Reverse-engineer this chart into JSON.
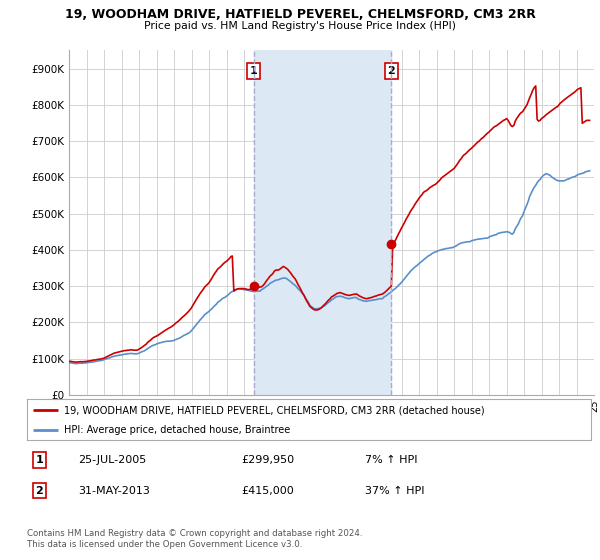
{
  "title": "19, WOODHAM DRIVE, HATFIELD PEVEREL, CHELMSFORD, CM3 2RR",
  "subtitle": "Price paid vs. HM Land Registry's House Price Index (HPI)",
  "ylim": [
    0,
    950000
  ],
  "yticks": [
    0,
    100000,
    200000,
    300000,
    400000,
    500000,
    600000,
    700000,
    800000,
    900000
  ],
  "ytick_labels": [
    "£0",
    "£100K",
    "£200K",
    "£300K",
    "£400K",
    "£500K",
    "£600K",
    "£700K",
    "£800K",
    "£900K"
  ],
  "sale1_year": 2005.56,
  "sale1_price": 299950,
  "sale1_label": "1",
  "sale2_year": 2013.42,
  "sale2_price": 415000,
  "sale2_label": "2",
  "red_line_color": "#cc0000",
  "blue_line_color": "#5b8fc9",
  "vline_color": "#aaaacc",
  "shade_color": "#dde8f5",
  "marker_color": "#cc0000",
  "background_color": "#ffffff",
  "grid_color": "#cccccc",
  "legend1_text": "19, WOODHAM DRIVE, HATFIELD PEVEREL, CHELMSFORD, CM3 2RR (detached house)",
  "legend2_text": "HPI: Average price, detached house, Braintree",
  "note1_label": "1",
  "note1_date": "25-JUL-2005",
  "note1_price": "£299,950",
  "note1_hpi": "7% ↑ HPI",
  "note2_label": "2",
  "note2_date": "31-MAY-2013",
  "note2_price": "£415,000",
  "note2_hpi": "37% ↑ HPI",
  "footer": "Contains HM Land Registry data © Crown copyright and database right 2024.\nThis data is licensed under the Open Government Licence v3.0.",
  "hpi_data_years": [
    1995.0,
    1995.08,
    1995.17,
    1995.25,
    1995.33,
    1995.42,
    1995.5,
    1995.58,
    1995.67,
    1995.75,
    1995.83,
    1995.92,
    1996.0,
    1996.08,
    1996.17,
    1996.25,
    1996.33,
    1996.42,
    1996.5,
    1996.58,
    1996.67,
    1996.75,
    1996.83,
    1996.92,
    1997.0,
    1997.08,
    1997.17,
    1997.25,
    1997.33,
    1997.42,
    1997.5,
    1997.58,
    1997.67,
    1997.75,
    1997.83,
    1997.92,
    1998.0,
    1998.08,
    1998.17,
    1998.25,
    1998.33,
    1998.42,
    1998.5,
    1998.58,
    1998.67,
    1998.75,
    1998.83,
    1998.92,
    1999.0,
    1999.08,
    1999.17,
    1999.25,
    1999.33,
    1999.42,
    1999.5,
    1999.58,
    1999.67,
    1999.75,
    1999.83,
    1999.92,
    2000.0,
    2000.08,
    2000.17,
    2000.25,
    2000.33,
    2000.42,
    2000.5,
    2000.58,
    2000.67,
    2000.75,
    2000.83,
    2000.92,
    2001.0,
    2001.08,
    2001.17,
    2001.25,
    2001.33,
    2001.42,
    2001.5,
    2001.58,
    2001.67,
    2001.75,
    2001.83,
    2001.92,
    2002.0,
    2002.08,
    2002.17,
    2002.25,
    2002.33,
    2002.42,
    2002.5,
    2002.58,
    2002.67,
    2002.75,
    2002.83,
    2002.92,
    2003.0,
    2003.08,
    2003.17,
    2003.25,
    2003.33,
    2003.42,
    2003.5,
    2003.58,
    2003.67,
    2003.75,
    2003.83,
    2003.92,
    2004.0,
    2004.08,
    2004.17,
    2004.25,
    2004.33,
    2004.42,
    2004.5,
    2004.58,
    2004.67,
    2004.75,
    2004.83,
    2004.92,
    2005.0,
    2005.08,
    2005.17,
    2005.25,
    2005.33,
    2005.42,
    2005.5,
    2005.58,
    2005.67,
    2005.75,
    2005.83,
    2005.92,
    2006.0,
    2006.08,
    2006.17,
    2006.25,
    2006.33,
    2006.42,
    2006.5,
    2006.58,
    2006.67,
    2006.75,
    2006.83,
    2006.92,
    2007.0,
    2007.08,
    2007.17,
    2007.25,
    2007.33,
    2007.42,
    2007.5,
    2007.58,
    2007.67,
    2007.75,
    2007.83,
    2007.92,
    2008.0,
    2008.08,
    2008.17,
    2008.25,
    2008.33,
    2008.42,
    2008.5,
    2008.58,
    2008.67,
    2008.75,
    2008.83,
    2008.92,
    2009.0,
    2009.08,
    2009.17,
    2009.25,
    2009.33,
    2009.42,
    2009.5,
    2009.58,
    2009.67,
    2009.75,
    2009.83,
    2009.92,
    2010.0,
    2010.08,
    2010.17,
    2010.25,
    2010.33,
    2010.42,
    2010.5,
    2010.58,
    2010.67,
    2010.75,
    2010.83,
    2010.92,
    2011.0,
    2011.08,
    2011.17,
    2011.25,
    2011.33,
    2011.42,
    2011.5,
    2011.58,
    2011.67,
    2011.75,
    2011.83,
    2011.92,
    2012.0,
    2012.08,
    2012.17,
    2012.25,
    2012.33,
    2012.42,
    2012.5,
    2012.58,
    2012.67,
    2012.75,
    2012.83,
    2012.92,
    2013.0,
    2013.08,
    2013.17,
    2013.25,
    2013.33,
    2013.42,
    2013.5,
    2013.58,
    2013.67,
    2013.75,
    2013.83,
    2013.92,
    2014.0,
    2014.08,
    2014.17,
    2014.25,
    2014.33,
    2014.42,
    2014.5,
    2014.58,
    2014.67,
    2014.75,
    2014.83,
    2014.92,
    2015.0,
    2015.08,
    2015.17,
    2015.25,
    2015.33,
    2015.42,
    2015.5,
    2015.58,
    2015.67,
    2015.75,
    2015.83,
    2015.92,
    2016.0,
    2016.08,
    2016.17,
    2016.25,
    2016.33,
    2016.42,
    2016.5,
    2016.58,
    2016.67,
    2016.75,
    2016.83,
    2016.92,
    2017.0,
    2017.08,
    2017.17,
    2017.25,
    2017.33,
    2017.42,
    2017.5,
    2017.58,
    2017.67,
    2017.75,
    2017.83,
    2017.92,
    2018.0,
    2018.08,
    2018.17,
    2018.25,
    2018.33,
    2018.42,
    2018.5,
    2018.58,
    2018.67,
    2018.75,
    2018.83,
    2018.92,
    2019.0,
    2019.08,
    2019.17,
    2019.25,
    2019.33,
    2019.42,
    2019.5,
    2019.58,
    2019.67,
    2019.75,
    2019.83,
    2019.92,
    2020.0,
    2020.08,
    2020.17,
    2020.25,
    2020.33,
    2020.42,
    2020.5,
    2020.58,
    2020.67,
    2020.75,
    2020.83,
    2020.92,
    2021.0,
    2021.08,
    2021.17,
    2021.25,
    2021.33,
    2021.42,
    2021.5,
    2021.58,
    2021.67,
    2021.75,
    2021.83,
    2021.92,
    2022.0,
    2022.08,
    2022.17,
    2022.25,
    2022.33,
    2022.42,
    2022.5,
    2022.58,
    2022.67,
    2022.75,
    2022.83,
    2022.92,
    2023.0,
    2023.08,
    2023.17,
    2023.25,
    2023.33,
    2023.42,
    2023.5,
    2023.58,
    2023.67,
    2023.75,
    2023.83,
    2023.92,
    2024.0,
    2024.08,
    2024.17,
    2024.25,
    2024.33,
    2024.42,
    2024.5,
    2024.58,
    2024.67,
    2024.75
  ],
  "hpi_data_values": [
    88000,
    88500,
    87500,
    87000,
    86500,
    86000,
    86500,
    87000,
    87500,
    87000,
    87500,
    88000,
    88000,
    89000,
    89500,
    90000,
    90500,
    91000,
    92000,
    92500,
    93500,
    94000,
    94500,
    95500,
    97000,
    98500,
    100000,
    101000,
    102000,
    104000,
    105000,
    106500,
    107500,
    108000,
    109000,
    109500,
    110000,
    111000,
    112000,
    112000,
    113000,
    113500,
    114000,
    114000,
    113500,
    113000,
    113000,
    113500,
    115000,
    117000,
    119000,
    120000,
    122000,
    125000,
    128000,
    130000,
    133000,
    135000,
    137000,
    138000,
    140000,
    141500,
    143000,
    144000,
    145000,
    146000,
    147000,
    147500,
    148000,
    148000,
    148500,
    149000,
    150000,
    152000,
    153500,
    155000,
    157000,
    159000,
    162000,
    164000,
    166000,
    168000,
    170000,
    173000,
    177000,
    182000,
    187000,
    192000,
    197000,
    202000,
    207000,
    211000,
    216000,
    221000,
    224000,
    227000,
    230000,
    234000,
    238000,
    242000,
    246000,
    250000,
    255000,
    258000,
    261000,
    265000,
    267000,
    269000,
    272000,
    275000,
    279000,
    283000,
    285000,
    287000,
    290000,
    291000,
    291500,
    292000,
    291500,
    291000,
    290000,
    289500,
    289000,
    288000,
    287000,
    286000,
    285000,
    285000,
    285500,
    286000,
    286000,
    286000,
    290000,
    292000,
    295000,
    298000,
    301000,
    304000,
    308000,
    310000,
    312000,
    315000,
    316000,
    317000,
    318000,
    320000,
    321000,
    322000,
    322000,
    321000,
    318000,
    315000,
    312000,
    308000,
    305000,
    302000,
    298000,
    293000,
    289000,
    285000,
    280000,
    275000,
    268000,
    262000,
    256000,
    248000,
    244000,
    241000,
    238000,
    237000,
    237500,
    238000,
    239000,
    240000,
    243000,
    245000,
    248000,
    252000,
    255000,
    258000,
    262000,
    264000,
    267000,
    270000,
    271000,
    271500,
    272000,
    271000,
    270000,
    268000,
    267000,
    266000,
    265000,
    266000,
    267000,
    268000,
    268500,
    268500,
    265000,
    263000,
    262000,
    260000,
    259000,
    258500,
    258000,
    259000,
    260000,
    260000,
    261000,
    262000,
    262000,
    263000,
    264000,
    265000,
    265000,
    265500,
    270000,
    272000,
    275000,
    278000,
    281000,
    284000,
    288000,
    291000,
    294000,
    298000,
    302000,
    306000,
    310000,
    315000,
    320000,
    325000,
    330000,
    335000,
    340000,
    344000,
    348000,
    352000,
    355000,
    358000,
    362000,
    365000,
    368500,
    372000,
    375000,
    378500,
    382000,
    384000,
    386500,
    390000,
    392000,
    394000,
    395000,
    397000,
    398500,
    400000,
    401000,
    401500,
    403000,
    403500,
    404000,
    405000,
    405500,
    406000,
    408000,
    410000,
    412000,
    415000,
    417000,
    418500,
    420000,
    420500,
    421000,
    422000,
    422000,
    422500,
    425000,
    426000,
    427000,
    428000,
    429000,
    429500,
    430000,
    430500,
    431000,
    432000,
    432000,
    432000,
    435000,
    437000,
    438500,
    440000,
    441000,
    441500,
    445000,
    446000,
    447000,
    448000,
    448500,
    449000,
    450000,
    449000,
    448000,
    445000,
    443000,
    448000,
    458000,
    464000,
    471000,
    480000,
    488000,
    494000,
    505000,
    515000,
    525000,
    535000,
    548000,
    557000,
    565000,
    572000,
    578000,
    585000,
    590000,
    594000,
    600000,
    604000,
    607000,
    610000,
    609000,
    607000,
    605000,
    601000,
    598000,
    595000,
    593000,
    591000,
    590000,
    590000,
    590000,
    590000,
    591000,
    593000,
    595000,
    596000,
    598000,
    600000,
    601000,
    602000,
    605000,
    607000,
    609000,
    610000,
    611000,
    612000,
    615000,
    616000,
    617000,
    618000
  ],
  "red_data_years": [
    1995.0,
    1995.08,
    1995.17,
    1995.25,
    1995.33,
    1995.42,
    1995.5,
    1995.58,
    1995.67,
    1995.75,
    1995.83,
    1995.92,
    1996.0,
    1996.08,
    1996.17,
    1996.25,
    1996.33,
    1996.42,
    1996.5,
    1996.58,
    1996.67,
    1996.75,
    1996.83,
    1996.92,
    1997.0,
    1997.08,
    1997.17,
    1997.25,
    1997.33,
    1997.42,
    1997.5,
    1997.58,
    1997.67,
    1997.75,
    1997.83,
    1997.92,
    1998.0,
    1998.08,
    1998.17,
    1998.25,
    1998.33,
    1998.42,
    1998.5,
    1998.58,
    1998.67,
    1998.75,
    1998.83,
    1998.92,
    1999.0,
    1999.08,
    1999.17,
    1999.25,
    1999.33,
    1999.42,
    1999.5,
    1999.58,
    1999.67,
    1999.75,
    1999.83,
    1999.92,
    2000.0,
    2000.08,
    2000.17,
    2000.25,
    2000.33,
    2000.42,
    2000.5,
    2000.58,
    2000.67,
    2000.75,
    2000.83,
    2000.92,
    2001.0,
    2001.08,
    2001.17,
    2001.25,
    2001.33,
    2001.42,
    2001.5,
    2001.58,
    2001.67,
    2001.75,
    2001.83,
    2001.92,
    2002.0,
    2002.08,
    2002.17,
    2002.25,
    2002.33,
    2002.42,
    2002.5,
    2002.58,
    2002.67,
    2002.75,
    2002.83,
    2002.92,
    2003.0,
    2003.08,
    2003.17,
    2003.25,
    2003.33,
    2003.42,
    2003.5,
    2003.58,
    2003.67,
    2003.75,
    2003.83,
    2003.92,
    2004.0,
    2004.08,
    2004.17,
    2004.25,
    2004.33,
    2004.42,
    2004.5,
    2004.58,
    2004.67,
    2004.75,
    2004.83,
    2004.92,
    2005.0,
    2005.08,
    2005.17,
    2005.25,
    2005.33,
    2005.42,
    2005.5,
    2005.58,
    2005.67,
    2005.75,
    2005.83,
    2005.92,
    2006.0,
    2006.08,
    2006.17,
    2006.25,
    2006.33,
    2006.42,
    2006.5,
    2006.58,
    2006.67,
    2006.75,
    2006.83,
    2006.92,
    2007.0,
    2007.08,
    2007.17,
    2007.25,
    2007.33,
    2007.42,
    2007.5,
    2007.58,
    2007.67,
    2007.75,
    2007.83,
    2007.92,
    2008.0,
    2008.08,
    2008.17,
    2008.25,
    2008.33,
    2008.42,
    2008.5,
    2008.58,
    2008.67,
    2008.75,
    2008.83,
    2008.92,
    2009.0,
    2009.08,
    2009.17,
    2009.25,
    2009.33,
    2009.42,
    2009.5,
    2009.58,
    2009.67,
    2009.75,
    2009.83,
    2009.92,
    2010.0,
    2010.08,
    2010.17,
    2010.25,
    2010.33,
    2010.42,
    2010.5,
    2010.58,
    2010.67,
    2010.75,
    2010.83,
    2010.92,
    2011.0,
    2011.08,
    2011.17,
    2011.25,
    2011.33,
    2011.42,
    2011.5,
    2011.58,
    2011.67,
    2011.75,
    2011.83,
    2011.92,
    2012.0,
    2012.08,
    2012.17,
    2012.25,
    2012.33,
    2012.42,
    2012.5,
    2012.58,
    2012.67,
    2012.75,
    2012.83,
    2012.92,
    2013.0,
    2013.08,
    2013.17,
    2013.25,
    2013.33,
    2013.42,
    2013.5,
    2013.58,
    2013.67,
    2013.75,
    2013.83,
    2013.92,
    2014.0,
    2014.08,
    2014.17,
    2014.25,
    2014.33,
    2014.42,
    2014.5,
    2014.58,
    2014.67,
    2014.75,
    2014.83,
    2014.92,
    2015.0,
    2015.08,
    2015.17,
    2015.25,
    2015.33,
    2015.42,
    2015.5,
    2015.58,
    2015.67,
    2015.75,
    2015.83,
    2015.92,
    2016.0,
    2016.08,
    2016.17,
    2016.25,
    2016.33,
    2016.42,
    2016.5,
    2016.58,
    2016.67,
    2016.75,
    2016.83,
    2016.92,
    2017.0,
    2017.08,
    2017.17,
    2017.25,
    2017.33,
    2017.42,
    2017.5,
    2017.58,
    2017.67,
    2017.75,
    2017.83,
    2017.92,
    2018.0,
    2018.08,
    2018.17,
    2018.25,
    2018.33,
    2018.42,
    2018.5,
    2018.58,
    2018.67,
    2018.75,
    2018.83,
    2018.92,
    2019.0,
    2019.08,
    2019.17,
    2019.25,
    2019.33,
    2019.42,
    2019.5,
    2019.58,
    2019.67,
    2019.75,
    2019.83,
    2019.92,
    2020.0,
    2020.08,
    2020.17,
    2020.25,
    2020.33,
    2020.42,
    2020.5,
    2020.58,
    2020.67,
    2020.75,
    2020.83,
    2020.92,
    2021.0,
    2021.08,
    2021.17,
    2021.25,
    2021.33,
    2021.42,
    2021.5,
    2021.58,
    2021.67,
    2021.75,
    2021.83,
    2021.92,
    2022.0,
    2022.08,
    2022.17,
    2022.25,
    2022.33,
    2022.42,
    2022.5,
    2022.58,
    2022.67,
    2022.75,
    2022.83,
    2022.92,
    2023.0,
    2023.08,
    2023.17,
    2023.25,
    2023.33,
    2023.42,
    2023.5,
    2023.58,
    2023.67,
    2023.75,
    2023.83,
    2023.92,
    2024.0,
    2024.08,
    2024.17,
    2024.25,
    2024.33,
    2024.42,
    2024.5,
    2024.58,
    2024.67,
    2024.75
  ],
  "red_data_values": [
    92000,
    92500,
    91500,
    91000,
    90500,
    90000,
    90500,
    91000,
    91500,
    91000,
    91500,
    92000,
    92000,
    93000,
    93500,
    94000,
    95000,
    96000,
    96000,
    97000,
    98000,
    98000,
    99000,
    100000,
    101000,
    103000,
    105000,
    107000,
    109000,
    111000,
    113000,
    115000,
    116000,
    117000,
    118000,
    119000,
    120000,
    121000,
    122000,
    122000,
    123000,
    123000,
    124000,
    124000,
    123500,
    123000,
    123000,
    123500,
    126000,
    128000,
    131000,
    134000,
    137000,
    140000,
    145000,
    148000,
    151000,
    155000,
    158000,
    160000,
    162000,
    164000,
    167000,
    170000,
    172000,
    175000,
    178000,
    180000,
    183000,
    185000,
    187000,
    190000,
    193000,
    197000,
    200000,
    203000,
    207000,
    211000,
    215000,
    218000,
    222000,
    226000,
    230000,
    235000,
    240000,
    247000,
    254000,
    261000,
    267000,
    274000,
    280000,
    285000,
    291000,
    297000,
    301000,
    305000,
    309000,
    315000,
    322000,
    329000,
    335000,
    341000,
    347000,
    350000,
    354000,
    358000,
    362000,
    366000,
    368000,
    372000,
    376000,
    381000,
    383000,
    286000,
    289000,
    291000,
    292500,
    293000,
    293000,
    293000,
    293000,
    292000,
    291000,
    290000,
    291000,
    291500,
    299950,
    298000,
    296000,
    296000,
    297000,
    297000,
    298000,
    301000,
    306000,
    312000,
    317000,
    323000,
    328000,
    331000,
    336000,
    342000,
    344000,
    344000,
    345000,
    348000,
    351000,
    354000,
    352000,
    349000,
    346000,
    341000,
    336000,
    330000,
    325000,
    320000,
    313000,
    305000,
    297000,
    290000,
    282000,
    275000,
    267000,
    259000,
    252000,
    245000,
    241000,
    238000,
    235000,
    234000,
    234000,
    235000,
    237000,
    240000,
    244000,
    248000,
    252000,
    257000,
    261000,
    265000,
    270000,
    272000,
    275000,
    278000,
    280000,
    281000,
    282000,
    280000,
    279000,
    277000,
    276000,
    275000,
    274000,
    275000,
    276000,
    277000,
    277500,
    278000,
    276000,
    273000,
    271000,
    269000,
    267000,
    266000,
    265000,
    266000,
    267000,
    268000,
    269000,
    271000,
    272000,
    273000,
    275000,
    276000,
    277000,
    278000,
    281000,
    284000,
    288000,
    292000,
    296000,
    300000,
    415000,
    420000,
    428000,
    436000,
    444000,
    452000,
    460000,
    467000,
    475000,
    483000,
    490000,
    497000,
    505000,
    511000,
    517000,
    524000,
    530000,
    536000,
    542000,
    547000,
    552000,
    558000,
    561000,
    563000,
    566000,
    570000,
    573000,
    576000,
    578000,
    580000,
    583000,
    587000,
    591000,
    596000,
    600000,
    603000,
    606000,
    609000,
    612000,
    615000,
    618000,
    621000,
    624000,
    629000,
    635000,
    641000,
    647000,
    652000,
    658000,
    662000,
    665000,
    669000,
    673000,
    677000,
    680000,
    684000,
    688000,
    692000,
    696000,
    699000,
    703000,
    707000,
    710000,
    714000,
    718000,
    722000,
    725000,
    729000,
    733000,
    737000,
    740000,
    742000,
    745000,
    748000,
    751000,
    754000,
    757000,
    759000,
    762000,
    758000,
    750000,
    743000,
    740000,
    743000,
    755000,
    762000,
    768000,
    774000,
    778000,
    781000,
    787000,
    793000,
    800000,
    810000,
    820000,
    830000,
    840000,
    847000,
    852000,
    760000,
    755000,
    757000,
    762000,
    765000,
    768000,
    772000,
    775000,
    778000,
    781000,
    784000,
    787000,
    790000,
    793000,
    795000,
    800000,
    805000,
    808000,
    812000,
    815000,
    818000,
    821000,
    824000,
    827000,
    830000,
    833000,
    836000,
    840000,
    843000,
    845000,
    847000,
    749000,
    752000,
    755000,
    757000,
    757000,
    757000
  ]
}
